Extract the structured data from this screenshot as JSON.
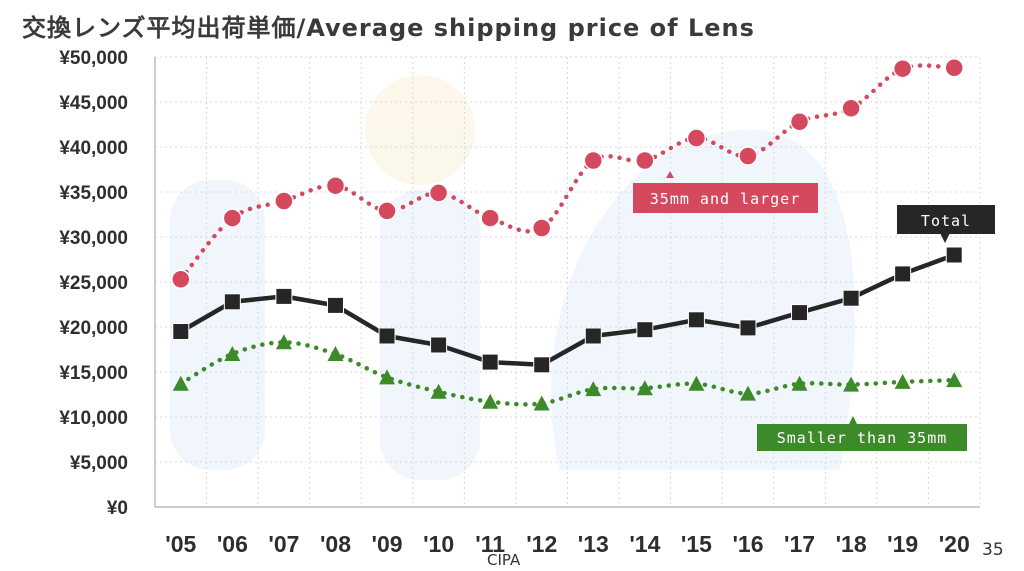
{
  "title": "交換レンズ平均出荷単価/Average shipping price of Lens",
  "source": "CIPA",
  "page_number": "35",
  "colors": {
    "large": "#d4495e",
    "total": "#262626",
    "small": "#3d8a2a",
    "watermark": "#dbe9f6"
  },
  "chart_data": {
    "type": "line",
    "categories": [
      "'05",
      "'06",
      "'07",
      "'08",
      "'09",
      "'10",
      "'11",
      "'12",
      "'13",
      "'14",
      "'15",
      "'16",
      "'17",
      "'18",
      "'19",
      "'20"
    ],
    "ylim": [
      0,
      50000
    ],
    "y_ticks": [
      "¥0",
      "¥5,000",
      "¥10,000",
      "¥15,000",
      "¥20,000",
      "¥25,000",
      "¥30,000",
      "¥35,000",
      "¥40,000",
      "¥45,000",
      "¥50,000"
    ],
    "grid": true,
    "series": [
      {
        "name": "35mm and larger",
        "style": "dotted-circle",
        "values": [
          25300,
          32100,
          34000,
          35700,
          32900,
          34900,
          32100,
          31000,
          38500,
          38500,
          41000,
          39000,
          42800,
          44300,
          48700,
          48800
        ]
      },
      {
        "name": "Total",
        "style": "solid-square",
        "values": [
          19500,
          22800,
          23400,
          22400,
          19000,
          18000,
          16100,
          15800,
          19000,
          19700,
          20800,
          19900,
          21600,
          23200,
          25900,
          28000
        ]
      },
      {
        "name": "Smaller than 35mm",
        "style": "dotted-triangle",
        "values": [
          13700,
          17000,
          18300,
          17000,
          14400,
          12800,
          11700,
          11500,
          13100,
          13200,
          13700,
          12600,
          13700,
          13600,
          13900,
          14100
        ]
      }
    ]
  }
}
